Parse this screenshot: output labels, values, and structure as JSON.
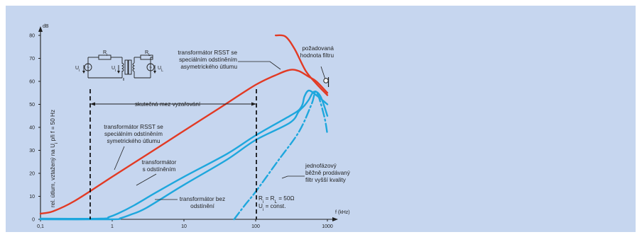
{
  "chart_data": {
    "type": "line",
    "y_unit": "dB",
    "x_unit": "f (kHz)",
    "ylabel": "rel. útlum, vztažený na U_i při f = 50 Hz",
    "x_scale": "log",
    "xlim": [
      0.1,
      1000
    ],
    "ylim": [
      0,
      80
    ],
    "y_ticks": [
      "0",
      "10",
      "20",
      "30",
      "40",
      "50",
      "60",
      "70",
      "80"
    ],
    "x_ticks": [
      "0,1",
      "1",
      "10",
      "100",
      "1000"
    ],
    "x_tick_values": [
      0.1,
      1,
      10,
      100,
      1000
    ],
    "grid": false,
    "colors": {
      "red": "#e23a24",
      "blue": "#1ea7dd",
      "panel": "#c6d6ef",
      "text": "#1f1f1f"
    },
    "series": [
      {
        "color": "#e23a24",
        "style": "solid",
        "x": [
          0.1,
          0.15,
          0.3,
          1,
          3,
          10,
          30,
          100,
          200,
          300,
          400,
          550,
          700,
          1000
        ],
        "y": [
          2.5,
          3.5,
          8,
          18.5,
          28,
          38.5,
          48,
          58.5,
          63,
          65,
          64.5,
          62,
          60,
          55
        ]
      },
      {
        "color": "#e23a24",
        "style": "solid",
        "x": [
          190,
          260,
          350,
          500,
          700,
          1000
        ],
        "y": [
          80,
          79.5,
          74,
          64.5,
          59,
          54
        ]
      },
      {
        "color": "#1ea7dd",
        "style": "solid",
        "x": [
          0.1,
          0.7,
          0.9,
          1.2,
          2,
          4,
          10,
          40,
          100,
          300,
          400,
          450,
          480,
          550,
          700,
          1000
        ],
        "y": [
          0.3,
          0.3,
          1,
          2.5,
          6,
          11.5,
          18.5,
          28.5,
          36.5,
          45,
          47.5,
          50,
          53.5,
          56,
          54,
          50
        ]
      },
      {
        "color": "#1ea7dd",
        "style": "solid",
        "x": [
          0.1,
          1,
          1.3,
          1.8,
          3,
          10,
          40,
          100,
          300,
          400,
          480,
          550,
          650,
          800,
          1000
        ],
        "y": [
          0,
          0,
          0.5,
          2,
          5,
          15,
          26,
          34.5,
          42,
          47,
          49.5,
          52,
          55.5,
          53.5,
          45
        ]
      },
      {
        "color": "#1ea7dd",
        "style": "dashdot",
        "x": [
          50,
          70,
          100,
          200,
          400,
          600,
          700,
          900,
          1000
        ],
        "y": [
          0,
          6,
          12,
          25,
          38,
          50,
          55.5,
          45,
          37
        ]
      }
    ],
    "annotations": {
      "rsst_asym": [
        "transformátor RSST se",
        "speciálním odstíněním",
        "asymetrického útlumu"
      ],
      "pozadovana": [
        "požadovaná",
        "hodnota filtru"
      ],
      "skutecna": "skutečná mez vyzařování",
      "rsst_sym": [
        "transformátor RSST se",
        "speciálním odstíněním",
        "symetrického útlumu"
      ],
      "s_odstinenim": [
        "transformátor",
        "s odstíněním"
      ],
      "jednofazovy": [
        "jednofázový",
        "běžně prodávaný",
        "filtr vyšší kvality"
      ],
      "bez": [
        "transformátor bez",
        "odstínění"
      ],
      "ri_line1": "R_i = R_L = 50Ω",
      "ri_line2": "U_i = const.",
      "schematic_labels": [
        "R_i",
        "R_L",
        "U_i",
        "U_i",
        "U_L"
      ]
    }
  }
}
